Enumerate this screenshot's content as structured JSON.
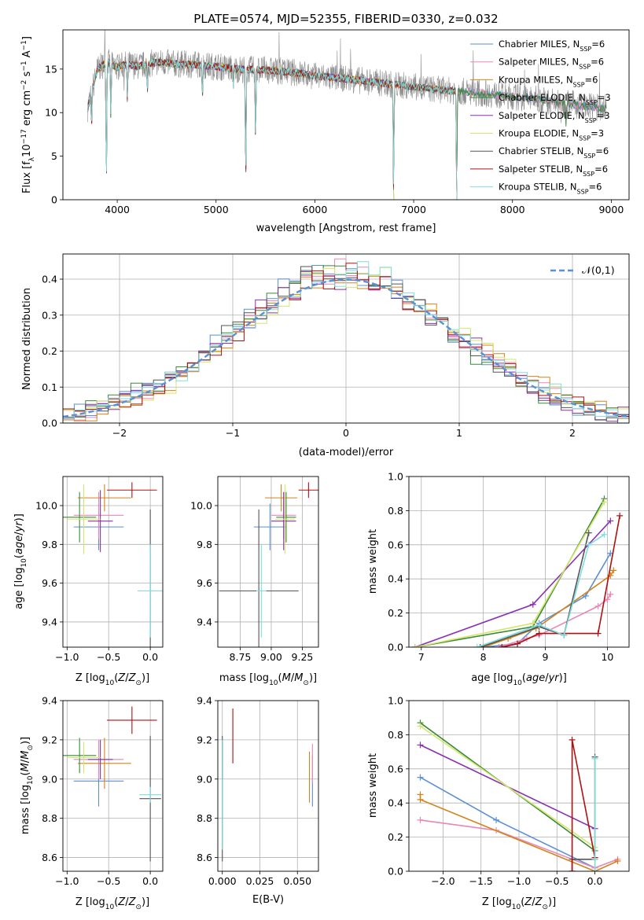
{
  "figure_title": "PLATE=0574, MJD=52355, FIBERID=0330, z=0.032",
  "colors": {
    "Chabrier MILES": "#5b8fd6",
    "Salpeter MILES": "#e887b8",
    "Kroupa MILES": "#d4831a",
    "Chabrier ELODIE": "#3a8a3a",
    "Salpeter ELODIE": "#8a2fb0",
    "Kroupa ELODIE": "#d4e66a",
    "Chabrier STELIB": "#555555",
    "Salpeter STELIB": "#b01010",
    "Kroupa STELIB": "#7fdde0",
    "data": "#8c8c8c",
    "normal": "#5b8fd6"
  },
  "chart_data": [
    {
      "id": "spectrum",
      "type": "line",
      "xlabel": "wavelength [Angstrom, rest frame]",
      "ylabel": "Flux [f_λ 10^-17 erg cm^-2 s^-1 A^-1]",
      "xlim": [
        3450,
        9180
      ],
      "ylim": [
        0,
        19.5
      ],
      "xticks": [
        4000,
        5000,
        6000,
        7000,
        8000,
        9000
      ],
      "yticks": [
        0,
        5,
        10,
        15
      ],
      "legend_position": "upper-right",
      "legend": [
        "Chabrier MILES, N_SSP=6",
        "Salpeter MILES, N_SSP=6",
        "Kroupa MILES, N_SSP=6",
        "Chabrier ELODIE, N_SSP=3",
        "Salpeter ELODIE, N_SSP=3",
        "Kroupa ELODIE, N_SSP=3",
        "Chabrier STELIB, N_SSP=6",
        "Salpeter STELIB, N_SSP=6",
        "Kroupa STELIB, N_SSP=6"
      ],
      "continuum": {
        "wavelength": [
          3700,
          3800,
          3900,
          4000,
          4100,
          4200,
          4400,
          4600,
          4800,
          5000,
          5200,
          5500,
          5800,
          6000,
          6300,
          6600,
          6900,
          7200,
          7500,
          7800,
          8100,
          8400,
          8700,
          8900
        ],
        "flux": [
          10.5,
          15.0,
          15.8,
          15.2,
          15.6,
          15.3,
          15.8,
          15.6,
          15.5,
          15.3,
          15.0,
          14.9,
          14.6,
          14.2,
          13.9,
          13.5,
          13.1,
          12.7,
          12.4,
          12.1,
          11.7,
          11.3,
          10.8,
          10.5
        ]
      },
      "model_range_angstrom": [
        3700,
        8950
      ],
      "absorption_features": [
        {
          "wavelength": 3740,
          "depth": 3.8
        },
        {
          "wavelength": 3890,
          "depth": 14.0
        },
        {
          "wavelength": 3935,
          "depth": 6.0
        },
        {
          "wavelength": 4102,
          "depth": 4.0
        },
        {
          "wavelength": 4305,
          "depth": 3.0
        },
        {
          "wavelength": 4862,
          "depth": 3.5
        },
        {
          "wavelength": 5175,
          "depth": 2.0
        },
        {
          "wavelength": 5300,
          "depth": 13.0
        },
        {
          "wavelength": 5400,
          "depth": 8.0
        },
        {
          "wavelength": 6797,
          "depth": 12.0
        },
        {
          "wavelength": 7435,
          "depth": 11.5
        },
        {
          "wavelength": 8542,
          "depth": 2.5
        }
      ]
    },
    {
      "id": "residuals",
      "type": "histogram",
      "xlabel": "(data-model)/error",
      "ylabel": "Normed distribution",
      "xlim": [
        -2.5,
        2.5
      ],
      "ylim": [
        0,
        0.47
      ],
      "xticks": [
        -2,
        -1,
        0,
        1,
        2
      ],
      "yticks": [
        0.0,
        0.1,
        0.2,
        0.3,
        0.4
      ],
      "grid": true,
      "bin_width": 0.1,
      "legend_position": "upper-right",
      "legend": [
        "𝒩(0,1)"
      ],
      "normal_curve": {
        "mean": 0,
        "sigma": 1
      }
    },
    {
      "id": "age_vs_Z",
      "type": "errorbar",
      "xlabel": "Z [log10(Z/Z⊙)]",
      "ylabel": "age  [log10(age/yr)]",
      "xlim": [
        -1.05,
        0.15
      ],
      "ylim": [
        9.27,
        10.15
      ],
      "xticks": [
        -1.0,
        -0.5,
        0.0
      ],
      "yticks": [
        9.4,
        9.6,
        9.8,
        10.0
      ],
      "grid": true,
      "points": [
        {
          "model": "Chabrier MILES",
          "x": -0.62,
          "xerr": 0.3,
          "y": 9.89,
          "yerr": 0.12
        },
        {
          "model": "Salpeter MILES",
          "x": -0.62,
          "xerr": 0.3,
          "y": 9.95,
          "yerr": 0.12
        },
        {
          "model": "Kroupa MILES",
          "x": -0.55,
          "xerr": 0.32,
          "y": 10.04,
          "yerr": 0.07
        },
        {
          "model": "Chabrier ELODIE",
          "x": -0.85,
          "xerr": 0.2,
          "y": 9.94,
          "yerr": 0.13
        },
        {
          "model": "Salpeter ELODIE",
          "x": -0.6,
          "xerr": 0.15,
          "y": 9.92,
          "yerr": 0.16
        },
        {
          "model": "Kroupa ELODIE",
          "x": -0.8,
          "xerr": 0.2,
          "y": 9.93,
          "yerr": 0.18
        },
        {
          "model": "Chabrier STELIB",
          "x": 0.0,
          "xerr": 0.15,
          "y": 9.56,
          "yerr": 0.42
        },
        {
          "model": "Salpeter STELIB",
          "x": -0.22,
          "xerr": 0.3,
          "y": 10.08,
          "yerr": 0.04
        },
        {
          "model": "Kroupa STELIB",
          "x": 0.0,
          "xerr": 0.15,
          "y": 9.56,
          "yerr": 0.24
        }
      ]
    },
    {
      "id": "age_vs_mass",
      "type": "errorbar",
      "xlabel": "mass [log10(M/M⊙)]",
      "ylabel": "",
      "xlim": [
        8.57,
        9.38
      ],
      "ylim": [
        9.27,
        10.15
      ],
      "xticks": [
        8.75,
        9.0,
        9.25
      ],
      "yticks": [
        9.4,
        9.6,
        9.8,
        10.0
      ],
      "grid": true,
      "points": [
        {
          "model": "Chabrier MILES",
          "x": 8.99,
          "xerr": 0.13,
          "y": 9.89,
          "yerr": 0.12
        },
        {
          "model": "Salpeter MILES",
          "x": 9.1,
          "xerr": 0.1,
          "y": 9.95,
          "yerr": 0.12
        },
        {
          "model": "Kroupa MILES",
          "x": 9.08,
          "xerr": 0.13,
          "y": 10.04,
          "yerr": 0.07
        },
        {
          "model": "Chabrier ELODIE",
          "x": 9.12,
          "xerr": 0.08,
          "y": 9.94,
          "yerr": 0.13
        },
        {
          "model": "Salpeter ELODIE",
          "x": 9.1,
          "xerr": 0.1,
          "y": 9.92,
          "yerr": 0.15
        },
        {
          "model": "Kroupa ELODIE",
          "x": 9.11,
          "xerr": 0.08,
          "y": 9.93,
          "yerr": 0.18
        },
        {
          "model": "Chabrier STELIB",
          "x": 8.9,
          "xerr": 0.32,
          "y": 9.56,
          "yerr": 0.42
        },
        {
          "model": "Salpeter STELIB",
          "x": 9.3,
          "xerr": 0.08,
          "y": 10.08,
          "yerr": 0.04
        },
        {
          "model": "Kroupa STELIB",
          "x": 8.92,
          "xerr": 0.04,
          "y": 9.56,
          "yerr": 0.24
        }
      ]
    },
    {
      "id": "mass_weight_vs_age",
      "type": "line",
      "xlabel": "age  [log10(age/yr)]",
      "ylabel": "mass weight",
      "xlim": [
        6.8,
        10.35
      ],
      "ylim": [
        0,
        1.0
      ],
      "xticks": [
        7,
        8,
        9,
        10
      ],
      "yticks": [
        0.0,
        0.2,
        0.4,
        0.6,
        0.8,
        1.0
      ],
      "grid": true,
      "series": [
        {
          "model": "Chabrier MILES",
          "x": [
            8.0,
            8.55,
            8.9,
            9.65,
            10.05
          ],
          "y": [
            0.0,
            0.02,
            0.14,
            0.3,
            0.55
          ]
        },
        {
          "model": "Salpeter MILES",
          "x": [
            8.25,
            8.7,
            8.9,
            9.85,
            10.0,
            10.05
          ],
          "y": [
            0.0,
            0.05,
            0.07,
            0.24,
            0.28,
            0.31
          ]
        },
        {
          "model": "Kroupa MILES",
          "x": [
            8.0,
            8.4,
            8.85,
            10.05,
            10.1
          ],
          "y": [
            0.0,
            0.05,
            0.11,
            0.42,
            0.45
          ]
        },
        {
          "model": "Chabrier ELODIE",
          "x": [
            6.9,
            8.8,
            9.95
          ],
          "y": [
            0.0,
            0.12,
            0.87
          ]
        },
        {
          "model": "Salpeter ELODIE",
          "x": [
            6.9,
            8.8,
            10.05
          ],
          "y": [
            0.0,
            0.25,
            0.74
          ]
        },
        {
          "model": "Kroupa ELODIE",
          "x": [
            6.9,
            8.8,
            9.95
          ],
          "y": [
            0.0,
            0.14,
            0.85
          ]
        },
        {
          "model": "Chabrier STELIB",
          "x": [
            7.95,
            8.9,
            9.3,
            9.7
          ],
          "y": [
            0.0,
            0.12,
            0.07,
            0.67
          ]
        },
        {
          "model": "Salpeter STELIB",
          "x": [
            8.3,
            8.55,
            8.9,
            9.85,
            10.2
          ],
          "y": [
            0.0,
            0.02,
            0.08,
            0.08,
            0.77
          ]
        },
        {
          "model": "Kroupa STELIB",
          "x": [
            7.9,
            8.9,
            9.3,
            9.7,
            9.95
          ],
          "y": [
            0.0,
            0.13,
            0.07,
            0.6,
            0.66
          ]
        }
      ]
    },
    {
      "id": "mass_vs_Z",
      "type": "errorbar",
      "xlabel": "Z [log10(Z/Z⊙)]",
      "ylabel": "mass [log10(M/M⊙)]",
      "xlim": [
        -1.05,
        0.15
      ],
      "ylim": [
        8.53,
        9.4
      ],
      "xticks": [
        -1.0,
        -0.5,
        0.0
      ],
      "yticks": [
        8.6,
        8.8,
        9.0,
        9.2,
        9.4
      ],
      "grid": true,
      "points": [
        {
          "model": "Chabrier MILES",
          "x": -0.62,
          "xerr": 0.3,
          "y": 8.99,
          "yerr": 0.13
        },
        {
          "model": "Salpeter MILES",
          "x": -0.62,
          "xerr": 0.3,
          "y": 9.1,
          "yerr": 0.1
        },
        {
          "model": "Kroupa MILES",
          "x": -0.55,
          "xerr": 0.32,
          "y": 9.08,
          "yerr": 0.13
        },
        {
          "model": "Chabrier ELODIE",
          "x": -0.85,
          "xerr": 0.2,
          "y": 9.12,
          "yerr": 0.09
        },
        {
          "model": "Salpeter ELODIE",
          "x": -0.6,
          "xerr": 0.15,
          "y": 9.1,
          "yerr": 0.1
        },
        {
          "model": "Kroupa ELODIE",
          "x": -0.8,
          "xerr": 0.2,
          "y": 9.11,
          "yerr": 0.08
        },
        {
          "model": "Chabrier STELIB",
          "x": 0.0,
          "xerr": 0.13,
          "y": 8.9,
          "yerr": 0.32
        },
        {
          "model": "Salpeter STELIB",
          "x": -0.22,
          "xerr": 0.3,
          "y": 9.3,
          "yerr": 0.07
        },
        {
          "model": "Kroupa STELIB",
          "x": 0.0,
          "xerr": 0.13,
          "y": 8.92,
          "yerr": 0.04
        }
      ]
    },
    {
      "id": "mass_vs_ebv",
      "type": "errorbar",
      "xlabel": "E(B-V)",
      "ylabel": "",
      "xlim": [
        -0.003,
        0.064
      ],
      "ylim": [
        8.53,
        9.4
      ],
      "xticks": [
        0.0,
        0.025,
        0.05
      ],
      "yticks": [
        8.6,
        8.8,
        9.0,
        9.2,
        9.4
      ],
      "grid": true,
      "points": [
        {
          "model": "Chabrier MILES",
          "x": 0.06,
          "xerr": 0.0,
          "y": 8.99,
          "yerr": 0.13
        },
        {
          "model": "Kroupa MILES",
          "x": 0.058,
          "xerr": 0.0,
          "y": 9.01,
          "yerr": 0.13
        },
        {
          "model": "Salpeter MILES",
          "x": 0.06,
          "xerr": 0.0,
          "y": 9.08,
          "yerr": 0.1
        },
        {
          "model": "Salpeter ELODIE",
          "x": 0.0,
          "xerr": 0.0,
          "y": 9.1,
          "yerr": 0.1
        },
        {
          "model": "Chabrier STELIB",
          "x": 0.0,
          "xerr": 0.0,
          "y": 8.9,
          "yerr": 0.32
        },
        {
          "model": "Kroupa STELIB",
          "x": 0.0,
          "xerr": 0.0,
          "y": 8.92,
          "yerr": 0.28
        },
        {
          "model": "Salpeter STELIB",
          "x": 0.007,
          "xerr": 0.0,
          "y": 9.22,
          "yerr": 0.14
        }
      ]
    },
    {
      "id": "mass_weight_vs_Z",
      "type": "line",
      "xlabel": "Z [log10(Z/Z⊙)]",
      "ylabel": "mass weight",
      "xlim": [
        -2.45,
        0.45
      ],
      "ylim": [
        0,
        1.0
      ],
      "xticks": [
        -2.0,
        -1.5,
        -1.0,
        -0.5,
        0.0
      ],
      "yticks": [
        0.0,
        0.2,
        0.4,
        0.6,
        0.8,
        1.0
      ],
      "grid": true,
      "series": [
        {
          "model": "Chabrier MILES",
          "x": [
            -2.3,
            -1.3,
            0.0
          ],
          "y": [
            0.55,
            0.3,
            0.02
          ]
        },
        {
          "model": "Salpeter MILES",
          "x": [
            -2.3,
            -1.3,
            0.0,
            0.3
          ],
          "y": [
            0.3,
            0.24,
            0.02,
            0.07
          ]
        },
        {
          "model": "Kroupa MILES",
          "x": [
            -2.3,
            -2.3,
            0.0,
            0.3
          ],
          "y": [
            0.45,
            0.42,
            0.0,
            0.06
          ]
        },
        {
          "model": "Chabrier ELODIE",
          "x": [
            -2.3,
            0.0
          ],
          "y": [
            0.87,
            0.12
          ]
        },
        {
          "model": "Salpeter ELODIE",
          "x": [
            -2.3,
            0.0
          ],
          "y": [
            0.74,
            0.25
          ]
        },
        {
          "model": "Kroupa ELODIE",
          "x": [
            -2.3,
            0.0
          ],
          "y": [
            0.85,
            0.14
          ]
        },
        {
          "model": "Chabrier STELIB",
          "x": [
            -0.3,
            -0.3,
            0.0,
            0.0
          ],
          "y": [
            0.0,
            0.07,
            0.07,
            0.67
          ]
        },
        {
          "model": "Salpeter STELIB",
          "x": [
            -0.3,
            -0.3,
            0.0
          ],
          "y": [
            0.0,
            0.77,
            0.08
          ]
        },
        {
          "model": "Kroupa STELIB",
          "x": [
            0.0,
            0.0,
            0.0
          ],
          "y": [
            0.0,
            0.07,
            0.66
          ]
        }
      ]
    }
  ]
}
